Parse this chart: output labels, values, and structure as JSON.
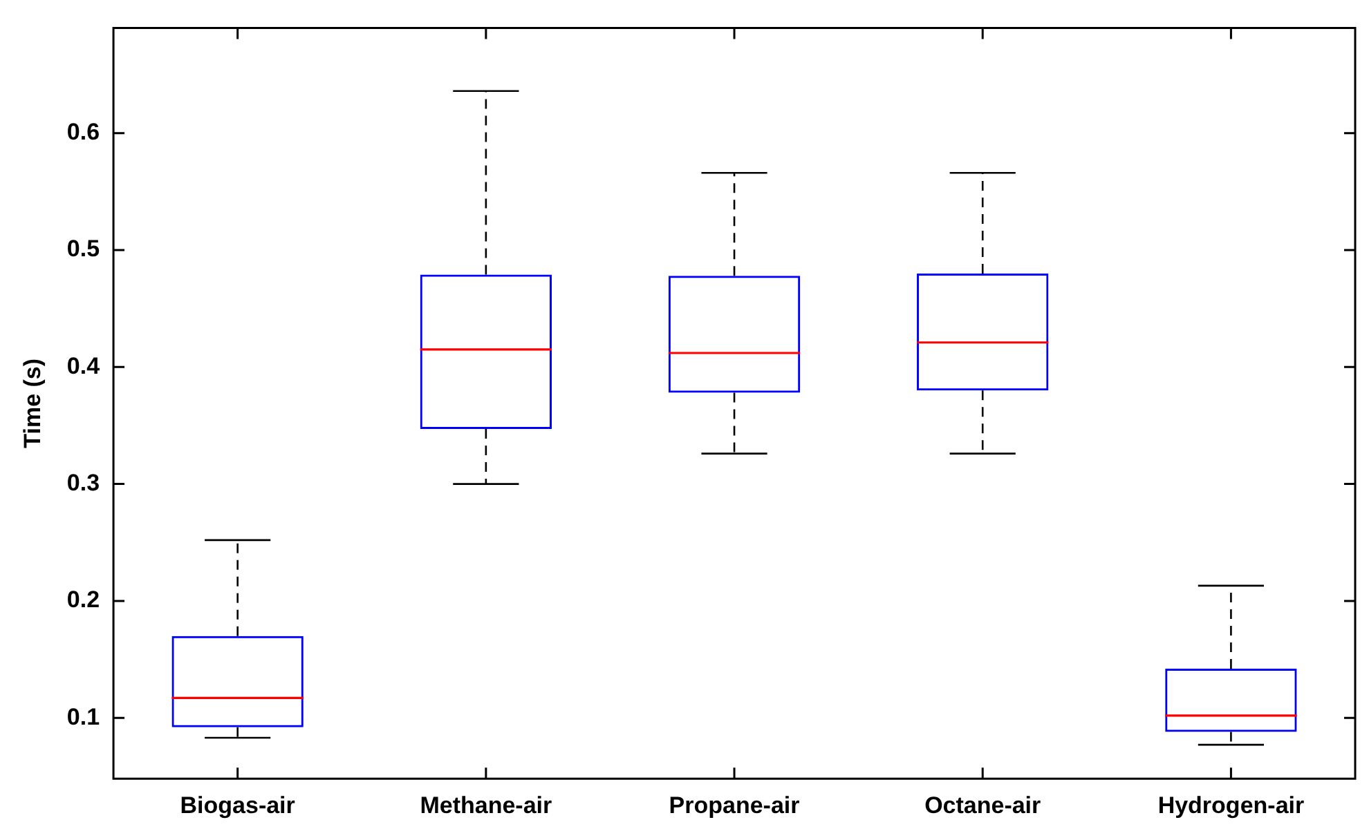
{
  "chart_data": {
    "type": "box",
    "ylabel": "Time (s)",
    "categories": [
      "Biogas-air",
      "Methane-air",
      "Propane-air",
      "Octane-air",
      "Hydrogen-air"
    ],
    "boxes": [
      {
        "low": 0.083,
        "q1": 0.092,
        "median": 0.117,
        "q3": 0.17,
        "high": 0.252
      },
      {
        "low": 0.3,
        "q1": 0.347,
        "median": 0.415,
        "q3": 0.479,
        "high": 0.636
      },
      {
        "low": 0.326,
        "q1": 0.378,
        "median": 0.412,
        "q3": 0.478,
        "high": 0.566
      },
      {
        "low": 0.326,
        "q1": 0.38,
        "median": 0.421,
        "q3": 0.48,
        "high": 0.566
      },
      {
        "low": 0.077,
        "q1": 0.088,
        "median": 0.102,
        "q3": 0.142,
        "high": 0.213
      }
    ],
    "color": "#0000ff",
    "ylim": [
      0.048,
      0.69
    ],
    "yticks": [
      0.1,
      0.2,
      0.3,
      0.4,
      0.5,
      0.6
    ],
    "grid": false,
    "legend": false
  }
}
